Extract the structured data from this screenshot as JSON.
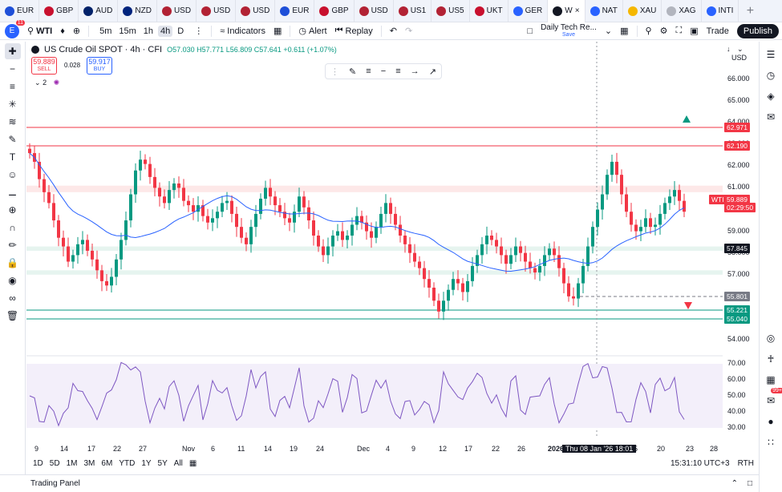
{
  "tabs": [
    {
      "label": "EUR",
      "color": "#1e4fd8"
    },
    {
      "label": "GBP",
      "color": "#c8102e"
    },
    {
      "label": "AUD",
      "color": "#012169"
    },
    {
      "label": "NZD",
      "color": "#00247d"
    },
    {
      "label": "USD",
      "color": "#b22234"
    },
    {
      "label": "USD",
      "color": "#b22234"
    },
    {
      "label": "USD",
      "color": "#b22234"
    },
    {
      "label": "EUR",
      "color": "#1e4fd8"
    },
    {
      "label": "GBP",
      "color": "#c8102e"
    },
    {
      "label": "USD",
      "color": "#b22234"
    },
    {
      "label": "US1",
      "color": "#b22234"
    },
    {
      "label": "US5",
      "color": "#b22234"
    },
    {
      "label": "UKT",
      "color": "#c8102e"
    },
    {
      "label": "GER",
      "color": "#2962ff"
    },
    {
      "label": "W",
      "color": "#131722",
      "active": true
    },
    {
      "label": "NAT",
      "color": "#2962ff"
    },
    {
      "label": "XAU",
      "color": "#f5b700"
    },
    {
      "label": "XAG",
      "color": "#b2b5be"
    },
    {
      "label": "INTI",
      "color": "#2962ff"
    }
  ],
  "toolbar": {
    "avatar_letter": "E",
    "avatar_badge": "11",
    "symbol": "WTI",
    "intervals": [
      "5m",
      "15m",
      "1h",
      "4h",
      "D"
    ],
    "active_interval": "4h",
    "indicators_label": "Indicators",
    "alert_label": "Alert",
    "replay_label": "Replay",
    "layout_name": "Daily Tech Re...",
    "layout_status": "Save",
    "trade_label": "Trade",
    "publish_label": "Publish"
  },
  "legend": {
    "title": "US Crude Oil SPOT · 4h · CFI",
    "open": "O57.030",
    "high": "H57.771",
    "low": "L56.809",
    "close": "C57.641",
    "change": "+0.611 (+1.07%)",
    "sell_price": "59.889",
    "sell_label": "SELL",
    "spread": "0.028",
    "buy_price": "59.917",
    "buy_label": "BUY",
    "layers": "2"
  },
  "axis": {
    "currency": "USD",
    "price_labels": [
      "66.000",
      "65.000",
      "64.000",
      "63.000",
      "62.000",
      "61.000",
      "60.000",
      "59.000",
      "58.000",
      "57.000",
      "56.000",
      "55.000",
      "54.000"
    ],
    "rsi_labels": [
      "70.00",
      "60.00",
      "50.00",
      "40.00",
      "30.00"
    ],
    "time_labels": [
      "9",
      "14",
      "17",
      "22",
      "27",
      "Nov",
      "6",
      "11",
      "14",
      "19",
      "24",
      "Dec",
      "4",
      "9",
      "12",
      "17",
      "22",
      "26",
      "2026",
      "15",
      "20",
      "23",
      "28"
    ],
    "crosshair_time": "Thu 08 Jan '26   18:01"
  },
  "price_tags": [
    {
      "value": "62.971",
      "color": "#f23645"
    },
    {
      "value": "62.190",
      "color": "#f23645"
    },
    {
      "value": "WTI",
      "color": "#f23645"
    },
    {
      "value": "59.889",
      "color": "#f23645"
    },
    {
      "value": "02:29:50",
      "color": "#f23645"
    },
    {
      "value": "57.845",
      "color": "#131722"
    },
    {
      "value": "55.801",
      "color": "#787b86"
    },
    {
      "value": "55.221",
      "color": "#089981"
    },
    {
      "value": "55.040",
      "color": "#089981"
    }
  ],
  "chart_data": {
    "type": "candlestick",
    "symbol": "WTI",
    "interval": "4h",
    "ylim": [
      53.6,
      66.4
    ],
    "close_series": [
      62.6,
      62.2,
      61.4,
      60.8,
      60.3,
      59.5,
      58.7,
      58.3,
      57.6,
      57.9,
      58.4,
      58.6,
      58.1,
      57.7,
      57.2,
      56.7,
      56.5,
      56.9,
      57.7,
      58.6,
      59.5,
      60.7,
      61.8,
      62.3,
      62.1,
      61.5,
      61.0,
      60.6,
      60.3,
      60.9,
      61.2,
      61.0,
      60.4,
      60.2,
      59.9,
      60.2,
      59.7,
      59.4,
      59.6,
      59.9,
      60.3,
      60.4,
      59.8,
      59.2,
      58.7,
      58.4,
      59.2,
      59.8,
      60.5,
      61.0,
      60.6,
      60.2,
      59.9,
      59.6,
      59.4,
      59.9,
      60.6,
      60.1,
      59.5,
      58.8,
      58.3,
      57.9,
      58.3,
      58.8,
      59.0,
      58.6,
      58.8,
      59.3,
      59.7,
      59.4,
      59.0,
      58.7,
      59.2,
      59.8,
      60.3,
      59.8,
      59.3,
      58.8,
      58.4,
      58.0,
      57.6,
      57.3,
      56.8,
      56.4,
      55.8,
      55.3,
      55.8,
      56.3,
      56.8,
      56.6,
      56.2,
      56.7,
      57.4,
      57.9,
      58.4,
      58.8,
      58.6,
      58.3,
      57.9,
      57.5,
      57.9,
      58.3,
      58.0,
      57.6,
      57.3,
      57.1,
      57.4,
      57.9,
      58.2,
      57.9,
      57.3,
      56.6,
      56.0,
      55.9,
      56.6,
      57.4,
      58.3,
      59.2,
      60.0,
      60.7,
      61.6,
      62.2,
      61.6,
      60.7,
      59.9,
      59.3,
      59.0,
      59.2,
      59.6,
      59.2,
      59.3,
      59.8,
      60.3,
      60.6,
      60.9,
      60.4,
      59.9
    ]
  }
}
